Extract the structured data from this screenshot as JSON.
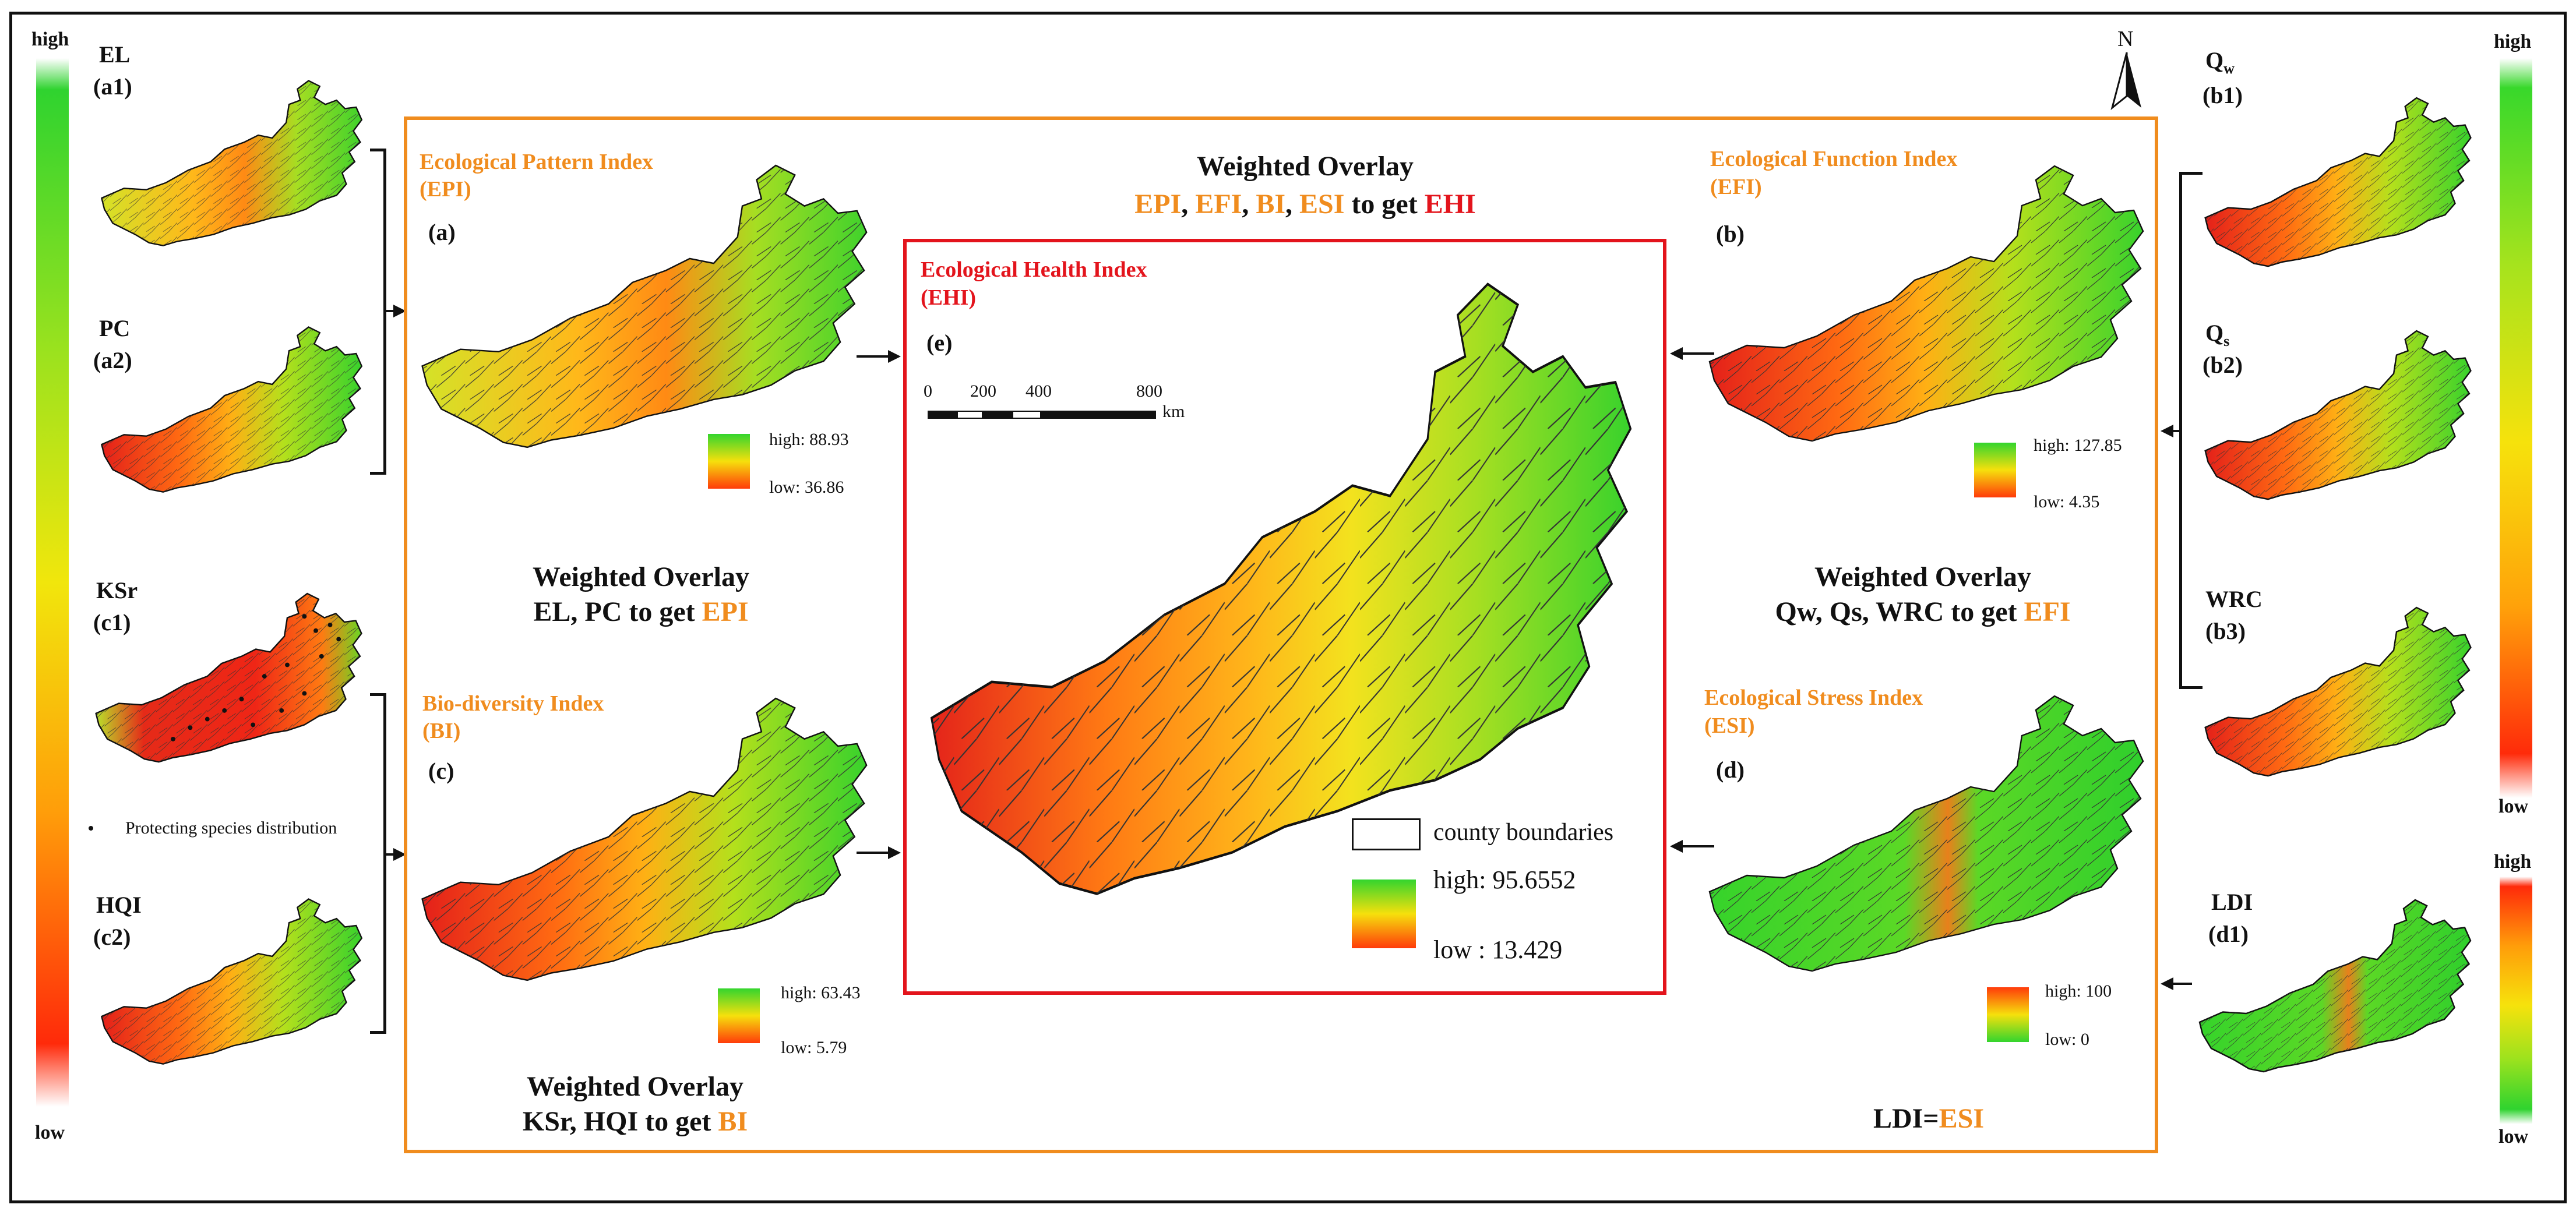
{
  "side_legend_left": {
    "high": "high",
    "low": "low"
  },
  "side_legend_right": {
    "high": "high",
    "low": "low"
  },
  "side_legend_ldi": {
    "high": "high",
    "low": "low"
  },
  "left_layers": [
    {
      "name": "EL",
      "id": "(a1)"
    },
    {
      "name": "PC",
      "id": "(a2)"
    },
    {
      "name": "KSr",
      "id": "(c1)"
    },
    {
      "name": "HQI",
      "id": "(c2)"
    }
  ],
  "species_note": "Protecting species distribution",
  "right_layers": {
    "qw": {
      "name": "Q",
      "sub": "w",
      "id": "(b1)"
    },
    "qs": {
      "name": "Q",
      "sub": "s",
      "id": "(b2)"
    },
    "wrc": {
      "name": "WRC",
      "id": "(b3)"
    },
    "ldi": {
      "name": "LDI",
      "id": "(d1)"
    }
  },
  "north": "N",
  "center": {
    "heading": "Weighted Overlay",
    "formula": {
      "epi": "EPI",
      "efi": "EFI",
      "bi": "BI",
      "esi": "ESI",
      "sep": ", ",
      "to": " to get ",
      "ehi": "EHI"
    }
  },
  "epi": {
    "title1": "Ecological Pattern Index",
    "title2": "(EPI)",
    "label": "(a)",
    "high": "high:  88.93",
    "low": "low:  36.86",
    "wo1": "Weighted Overlay",
    "wo2": "EL, PC to get ",
    "wo2_hl": "EPI"
  },
  "bi": {
    "title1": "Bio-diversity Index",
    "title2": "(BI)",
    "label": "(c)",
    "high": "high:  63.43",
    "low": "low:  5.79",
    "wo1": "Weighted Overlay",
    "wo2": "KSr, HQI to get ",
    "wo2_hl": "BI"
  },
  "efi": {
    "title1": "Ecological Function Index",
    "title2": "(EFI)",
    "label": "(b)",
    "high": "high:  127.85",
    "low": "low:  4.35",
    "wo1": "Weighted Overlay",
    "wo2": "Qw, Qs, WRC to get ",
    "wo2_hl": "EFI"
  },
  "esi": {
    "title1": "Ecological Stress Index",
    "title2": "(ESI)",
    "label": "(d)",
    "high": "high:  100",
    "low": "low:  0",
    "eq": "LDI=",
    "eq_hl": "ESI"
  },
  "ehi": {
    "title1": "Ecological Health Index",
    "title2": "(EHI)",
    "label": "(e)",
    "scale": {
      "t0": "0",
      "t1": "200",
      "t2": "400",
      "t3": "800",
      "unit": "km"
    },
    "legend": {
      "boundaries": "county boundaries",
      "high": "high:  95.6552",
      "low": "low : 13.429"
    }
  },
  "colors": {
    "orange": "#f08c1e",
    "red": "#e3141c",
    "green": "#2fd32f",
    "yellow": "#f6e20c"
  }
}
